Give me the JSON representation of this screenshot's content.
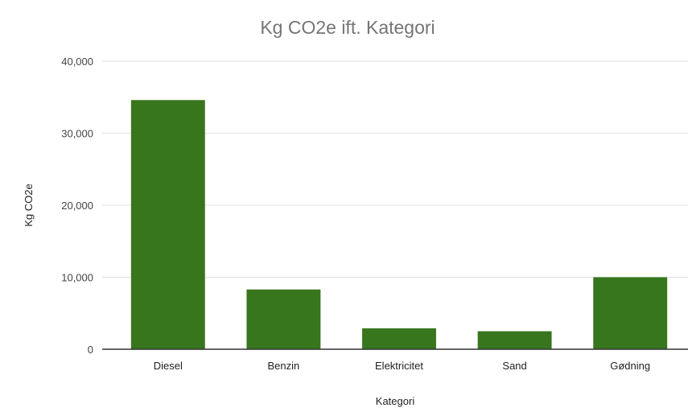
{
  "chart_data": {
    "type": "bar",
    "title": "Kg CO2e ift. Kategori",
    "xlabel": "Kategori",
    "ylabel": "Kg CO2e",
    "categories": [
      "Diesel",
      "Benzin",
      "Elektricitet",
      "Sand",
      "Gødning"
    ],
    "series": [
      {
        "values": [
          34600,
          8300,
          2900,
          2500,
          10000
        ],
        "color": "#38761d"
      }
    ],
    "ylim": [
      0,
      40000
    ],
    "yticks": [
      0,
      10000,
      20000,
      30000,
      40000
    ],
    "ytick_labels": [
      "0",
      "10,000",
      "20,000",
      "30,000",
      "40,000"
    ],
    "grid": true,
    "legend": "none"
  }
}
